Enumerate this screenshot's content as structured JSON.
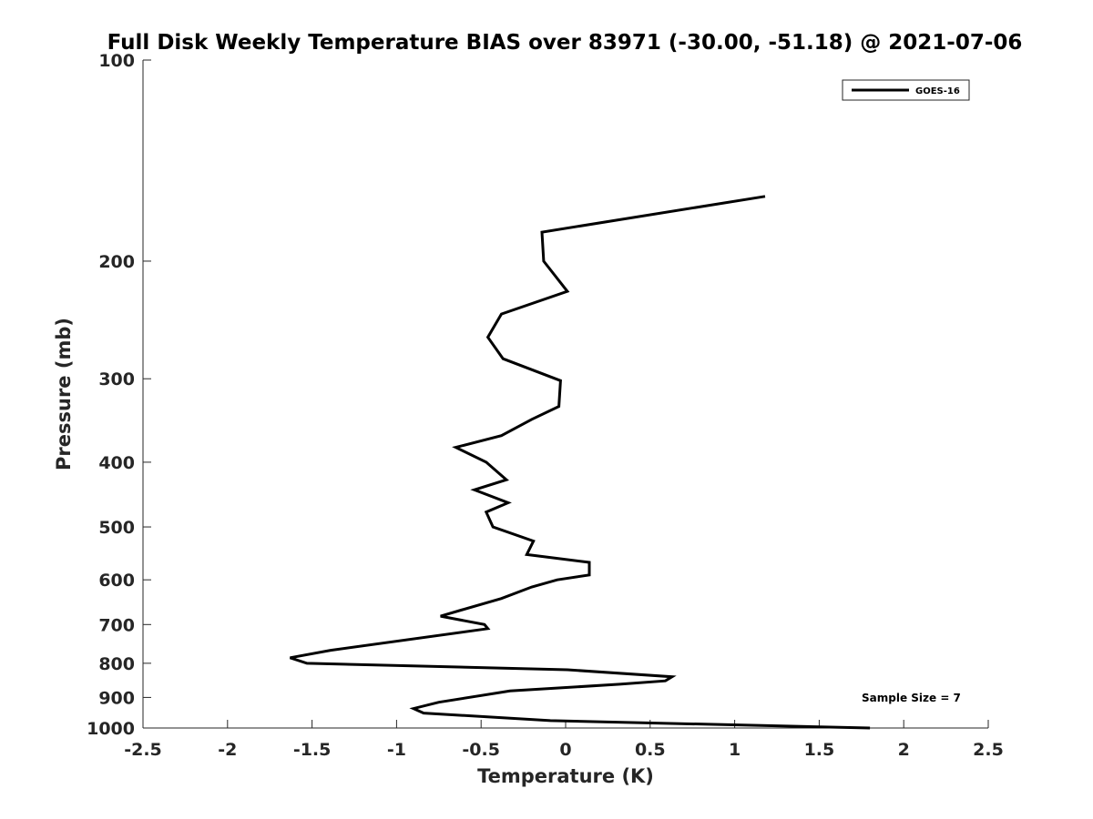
{
  "chart_data": {
    "type": "line",
    "title": "Full Disk Weekly Temperature BIAS over 83971 (-30.00, -51.18) @ 2021-07-06",
    "xlabel": "Temperature (K)",
    "ylabel": "Pressure (mb)",
    "xlim": [
      -2.5,
      2.5
    ],
    "ylim": [
      100,
      1000
    ],
    "y_scale": "log",
    "y_reversed": true,
    "x_ticks": [
      -2.5,
      -2,
      -1.5,
      -1,
      -0.5,
      0,
      0.5,
      1,
      1.5,
      2,
      2.5
    ],
    "x_tick_labels": [
      "-2.5",
      "-2",
      "-1.5",
      "-1",
      "-0.5",
      "0",
      "0.5",
      "1",
      "1.5",
      "2",
      "2.5"
    ],
    "y_ticks": [
      100,
      200,
      300,
      400,
      500,
      600,
      700,
      800,
      900,
      1000
    ],
    "y_tick_labels": [
      "100",
      "200",
      "300",
      "400",
      "500",
      "600",
      "700",
      "800",
      "900",
      "1000"
    ],
    "grid": false,
    "legend_position": "top-right",
    "annotation": "Sample Size = 7",
    "line_color": "#000000",
    "series": [
      {
        "name": "GOES-16",
        "points": [
          {
            "x": 1.18,
            "y": 160
          },
          {
            "x": -0.14,
            "y": 181
          },
          {
            "x": -0.13,
            "y": 200
          },
          {
            "x": 0.01,
            "y": 222
          },
          {
            "x": -0.38,
            "y": 240
          },
          {
            "x": -0.46,
            "y": 260
          },
          {
            "x": -0.37,
            "y": 280
          },
          {
            "x": -0.03,
            "y": 302
          },
          {
            "x": -0.04,
            "y": 330
          },
          {
            "x": -0.2,
            "y": 345
          },
          {
            "x": -0.38,
            "y": 365
          },
          {
            "x": -0.65,
            "y": 380
          },
          {
            "x": -0.47,
            "y": 400
          },
          {
            "x": -0.35,
            "y": 425
          },
          {
            "x": -0.54,
            "y": 440
          },
          {
            "x": -0.34,
            "y": 460
          },
          {
            "x": -0.47,
            "y": 475
          },
          {
            "x": -0.43,
            "y": 500
          },
          {
            "x": -0.19,
            "y": 525
          },
          {
            "x": -0.23,
            "y": 550
          },
          {
            "x": 0.14,
            "y": 565
          },
          {
            "x": 0.14,
            "y": 590
          },
          {
            "x": -0.05,
            "y": 600
          },
          {
            "x": -0.2,
            "y": 615
          },
          {
            "x": -0.38,
            "y": 640
          },
          {
            "x": -0.61,
            "y": 665
          },
          {
            "x": -0.74,
            "y": 680
          },
          {
            "x": -0.48,
            "y": 700
          },
          {
            "x": -0.46,
            "y": 710
          },
          {
            "x": -1.39,
            "y": 765
          },
          {
            "x": -1.63,
            "y": 785
          },
          {
            "x": -1.53,
            "y": 800
          },
          {
            "x": 0.01,
            "y": 818
          },
          {
            "x": 0.63,
            "y": 838
          },
          {
            "x": 0.59,
            "y": 850
          },
          {
            "x": 0.32,
            "y": 860
          },
          {
            "x": -0.33,
            "y": 880
          },
          {
            "x": -0.75,
            "y": 915
          },
          {
            "x": -0.9,
            "y": 935
          },
          {
            "x": -0.84,
            "y": 950
          },
          {
            "x": -0.09,
            "y": 975
          },
          {
            "x": 1.8,
            "y": 1000
          }
        ]
      }
    ]
  }
}
